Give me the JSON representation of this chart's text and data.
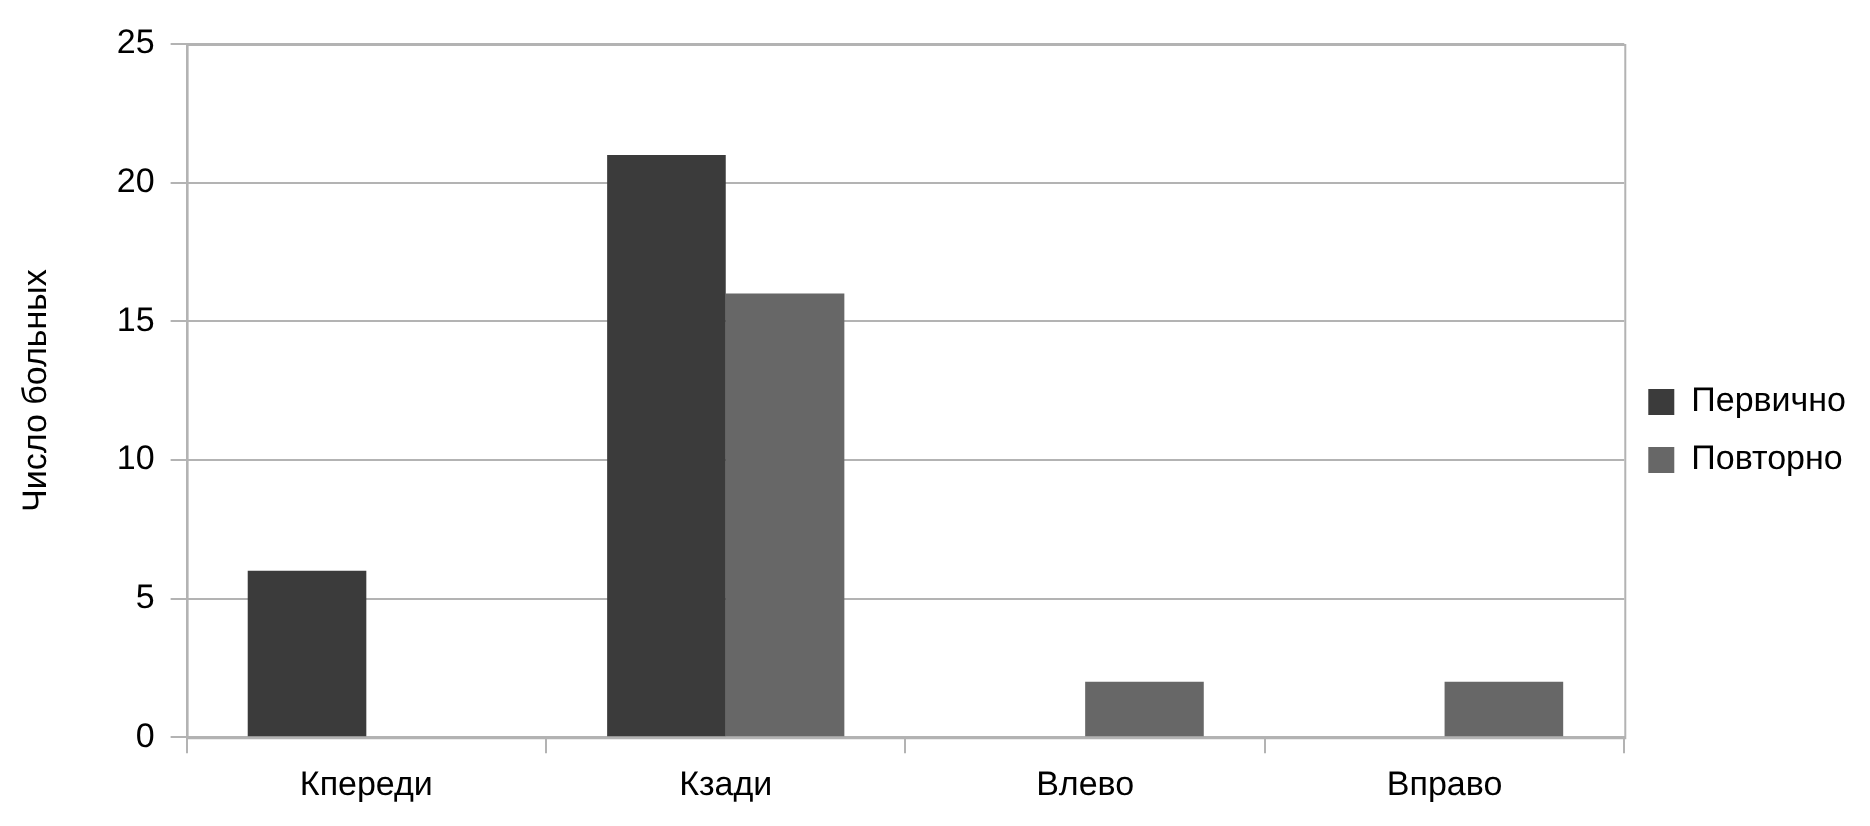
{
  "chart_data": {
    "type": "bar",
    "ylabel": "Число больных",
    "categories": [
      "Кпереди",
      "Кзади",
      "Влево",
      "Вправо"
    ],
    "series": [
      {
        "name": "Первично",
        "color": "#3b3b3b",
        "values": [
          6,
          21,
          0,
          0
        ]
      },
      {
        "name": "Повторно",
        "color": "#676767",
        "values": [
          0,
          16,
          2,
          2
        ]
      }
    ],
    "ylim": [
      0,
      25
    ],
    "yticks": [
      0,
      5,
      10,
      15,
      20,
      25
    ],
    "grid": "y",
    "legend": "right"
  }
}
